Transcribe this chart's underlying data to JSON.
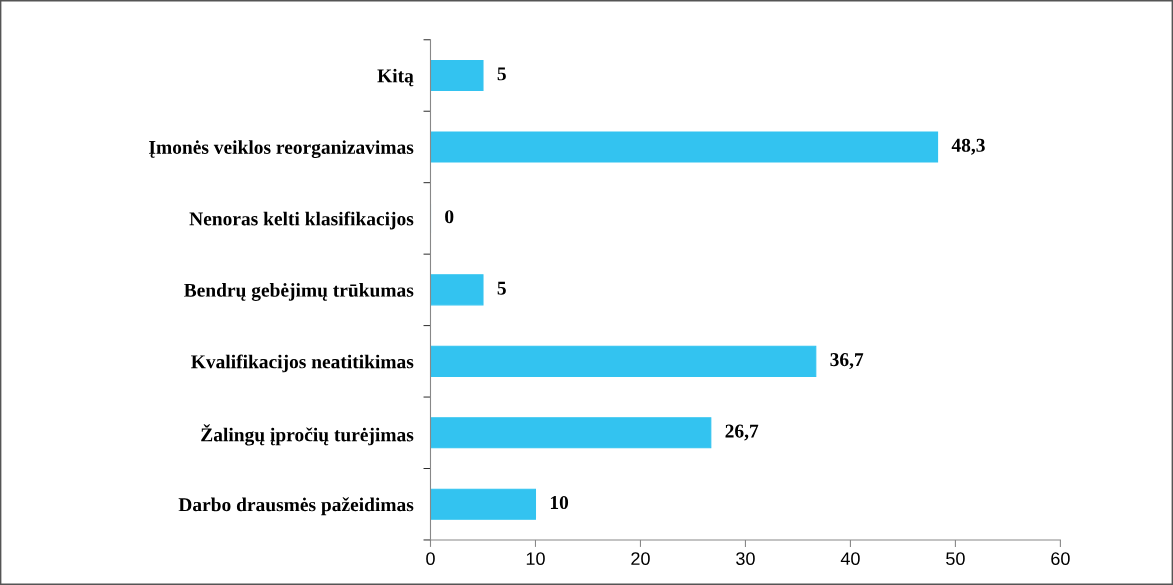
{
  "chart_data": {
    "type": "bar",
    "orientation": "horizontal",
    "categories": [
      "Kitą",
      "Įmonės veiklos reorganizavimas",
      "Nenoras kelti klasifikacijos",
      "Bendrų gebėjimų trūkumas",
      "Kvalifikacijos neatitikimas",
      "Žalingų įpročių turėjimas",
      "Darbo drausmės pažeidimas"
    ],
    "values": [
      5,
      48.3,
      0,
      5,
      36.7,
      26.7,
      10
    ],
    "value_labels": [
      "5",
      "48,3",
      "0",
      "5",
      "36,7",
      "26,7",
      "10"
    ],
    "color": "#33c3f0",
    "xlim": [
      0,
      60
    ],
    "xticks": [
      0,
      10,
      20,
      30,
      40,
      50,
      60
    ],
    "grid": false
  }
}
